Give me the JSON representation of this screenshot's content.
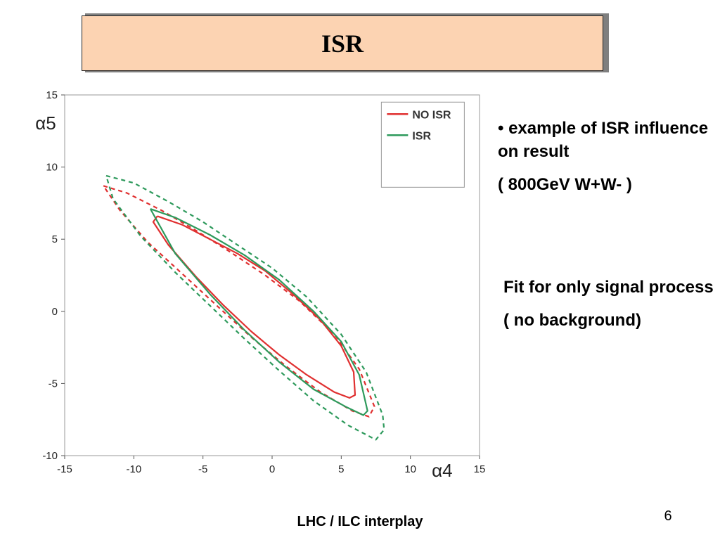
{
  "slide": {
    "title": "ISR",
    "bullets": [
      "• example of ISR influence on result",
      "( 800GeV  W+W- )"
    ],
    "bullets2": [
      "Fit for only signal process",
      "( no background)"
    ],
    "footer": "LHC / ILC interplay",
    "page_number": "6"
  },
  "chart_data": {
    "type": "line",
    "xlabel": "α4",
    "ylabel": "α5",
    "xlim": [
      -15,
      15
    ],
    "ylim": [
      -10,
      15
    ],
    "xticks": [
      "-15",
      "-10",
      "-5",
      "0",
      "5",
      "10",
      "15"
    ],
    "yticks": [
      "-10",
      "-5",
      "0",
      "5",
      "10",
      "15"
    ],
    "grid": false,
    "legend_position": "top-right",
    "colors": {
      "NO ISR": "#e03030",
      "ISR": "#2e9a5c"
    },
    "series": [
      {
        "name": "NO ISR",
        "style": "solid",
        "x": [
          -8.3,
          -6.5,
          -4.5,
          -2.5,
          -0.5,
          1.5,
          3.5,
          5,
          5.9,
          6.0,
          5.6,
          4.5,
          2.5,
          0.5,
          -1.5,
          -3.5,
          -5.5,
          -7.5,
          -8.6,
          -8.3
        ],
        "y": [
          6.6,
          6.0,
          5.0,
          4.0,
          2.8,
          1.2,
          -0.6,
          -2.4,
          -4.2,
          -5.8,
          -6.0,
          -5.6,
          -4.4,
          -3.0,
          -1.4,
          0.4,
          2.4,
          4.6,
          6.2,
          6.6
        ]
      },
      {
        "name": "NO ISR",
        "style": "dashed",
        "x": [
          -12.2,
          -10.5,
          -8,
          -5.5,
          -3,
          -0.5,
          2,
          4.5,
          6.3,
          7.4,
          7.0,
          5.8,
          3.5,
          1,
          -1.5,
          -4,
          -6.5,
          -9,
          -11,
          -12.2
        ],
        "y": [
          8.7,
          8.2,
          7.0,
          5.6,
          4.1,
          2.5,
          0.7,
          -1.6,
          -4.0,
          -6.6,
          -7.3,
          -6.9,
          -5.6,
          -3.8,
          -1.8,
          0.4,
          2.6,
          4.8,
          7.0,
          8.7
        ]
      },
      {
        "name": "ISR",
        "style": "solid",
        "x": [
          -8.8,
          -7,
          -4.5,
          -2,
          0.5,
          3,
          5,
          6.3,
          6.9,
          6.6,
          5.3,
          3,
          0.5,
          -2,
          -4.5,
          -7,
          -8.8
        ],
        "y": [
          7.1,
          6.5,
          5.3,
          3.9,
          2.2,
          0.0,
          -2.1,
          -4.4,
          -6.9,
          -7.2,
          -6.6,
          -5.4,
          -3.5,
          -1.3,
          1.2,
          4.0,
          7.1
        ]
      },
      {
        "name": "ISR",
        "style": "dashed",
        "x": [
          -12.0,
          -10,
          -7.5,
          -5,
          -2.5,
          0,
          2.5,
          5,
          6.8,
          8.0,
          8.1,
          7.5,
          5.5,
          3,
          0.5,
          -2,
          -4.5,
          -7,
          -9.5,
          -11.5,
          -12.0
        ],
        "y": [
          9.4,
          8.9,
          7.6,
          6.2,
          4.6,
          3.0,
          1.0,
          -1.6,
          -4.2,
          -7.2,
          -8.2,
          -8.9,
          -7.9,
          -6.2,
          -4.1,
          -1.9,
          0.4,
          2.7,
          5.2,
          7.8,
          9.4
        ]
      }
    ]
  }
}
